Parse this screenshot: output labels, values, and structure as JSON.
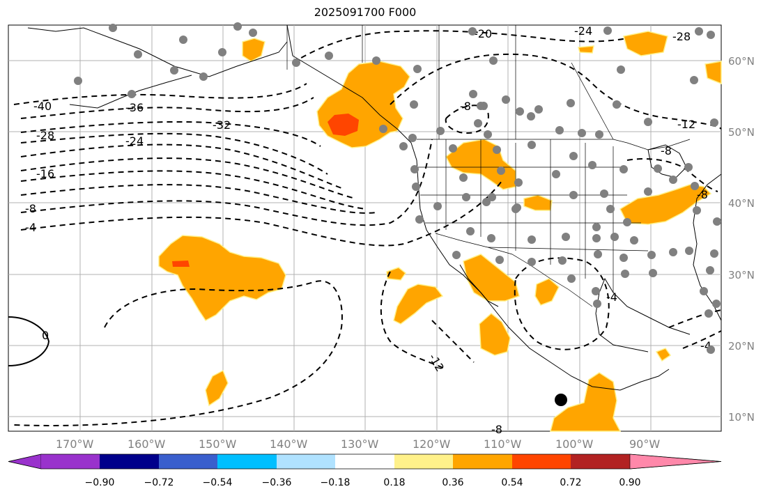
{
  "title": "2025091700 F000",
  "map": {
    "lat_labels": [
      "60°N",
      "50°N",
      "40°N",
      "30°N",
      "20°N",
      "10°N"
    ],
    "lon_labels": [
      "170°W",
      "160°W",
      "150°W",
      "140°W",
      "130°W",
      "120°W",
      "110°W",
      "100°W",
      "90°W"
    ],
    "contour_labels": [
      "-40",
      "-36",
      "-32",
      "-28",
      "-24",
      "-20",
      "-24",
      "-28",
      "-16",
      "-8",
      "-4",
      "-8",
      "-12",
      "-8",
      "-8",
      "-4",
      "-12",
      "-4",
      "-8",
      "0"
    ],
    "colors": {
      "light_orange": "#ffa500",
      "red_orange": "#ff4500",
      "station_marker": "#808080",
      "pale_yellow_edge": "#fff18a"
    }
  },
  "colorbar": {
    "ticks": [
      "−0.90",
      "−0.72",
      "−0.54",
      "−0.36",
      "−0.18",
      "0.18",
      "0.36",
      "0.54",
      "0.72",
      "0.90"
    ],
    "colors": [
      "#9932cc",
      "#00008b",
      "#3a5fcd",
      "#00bfff",
      "#b0e2ff",
      "#ffffff",
      "#fff18a",
      "#ffa500",
      "#ff4500",
      "#b22222",
      "#ff88aa"
    ]
  }
}
